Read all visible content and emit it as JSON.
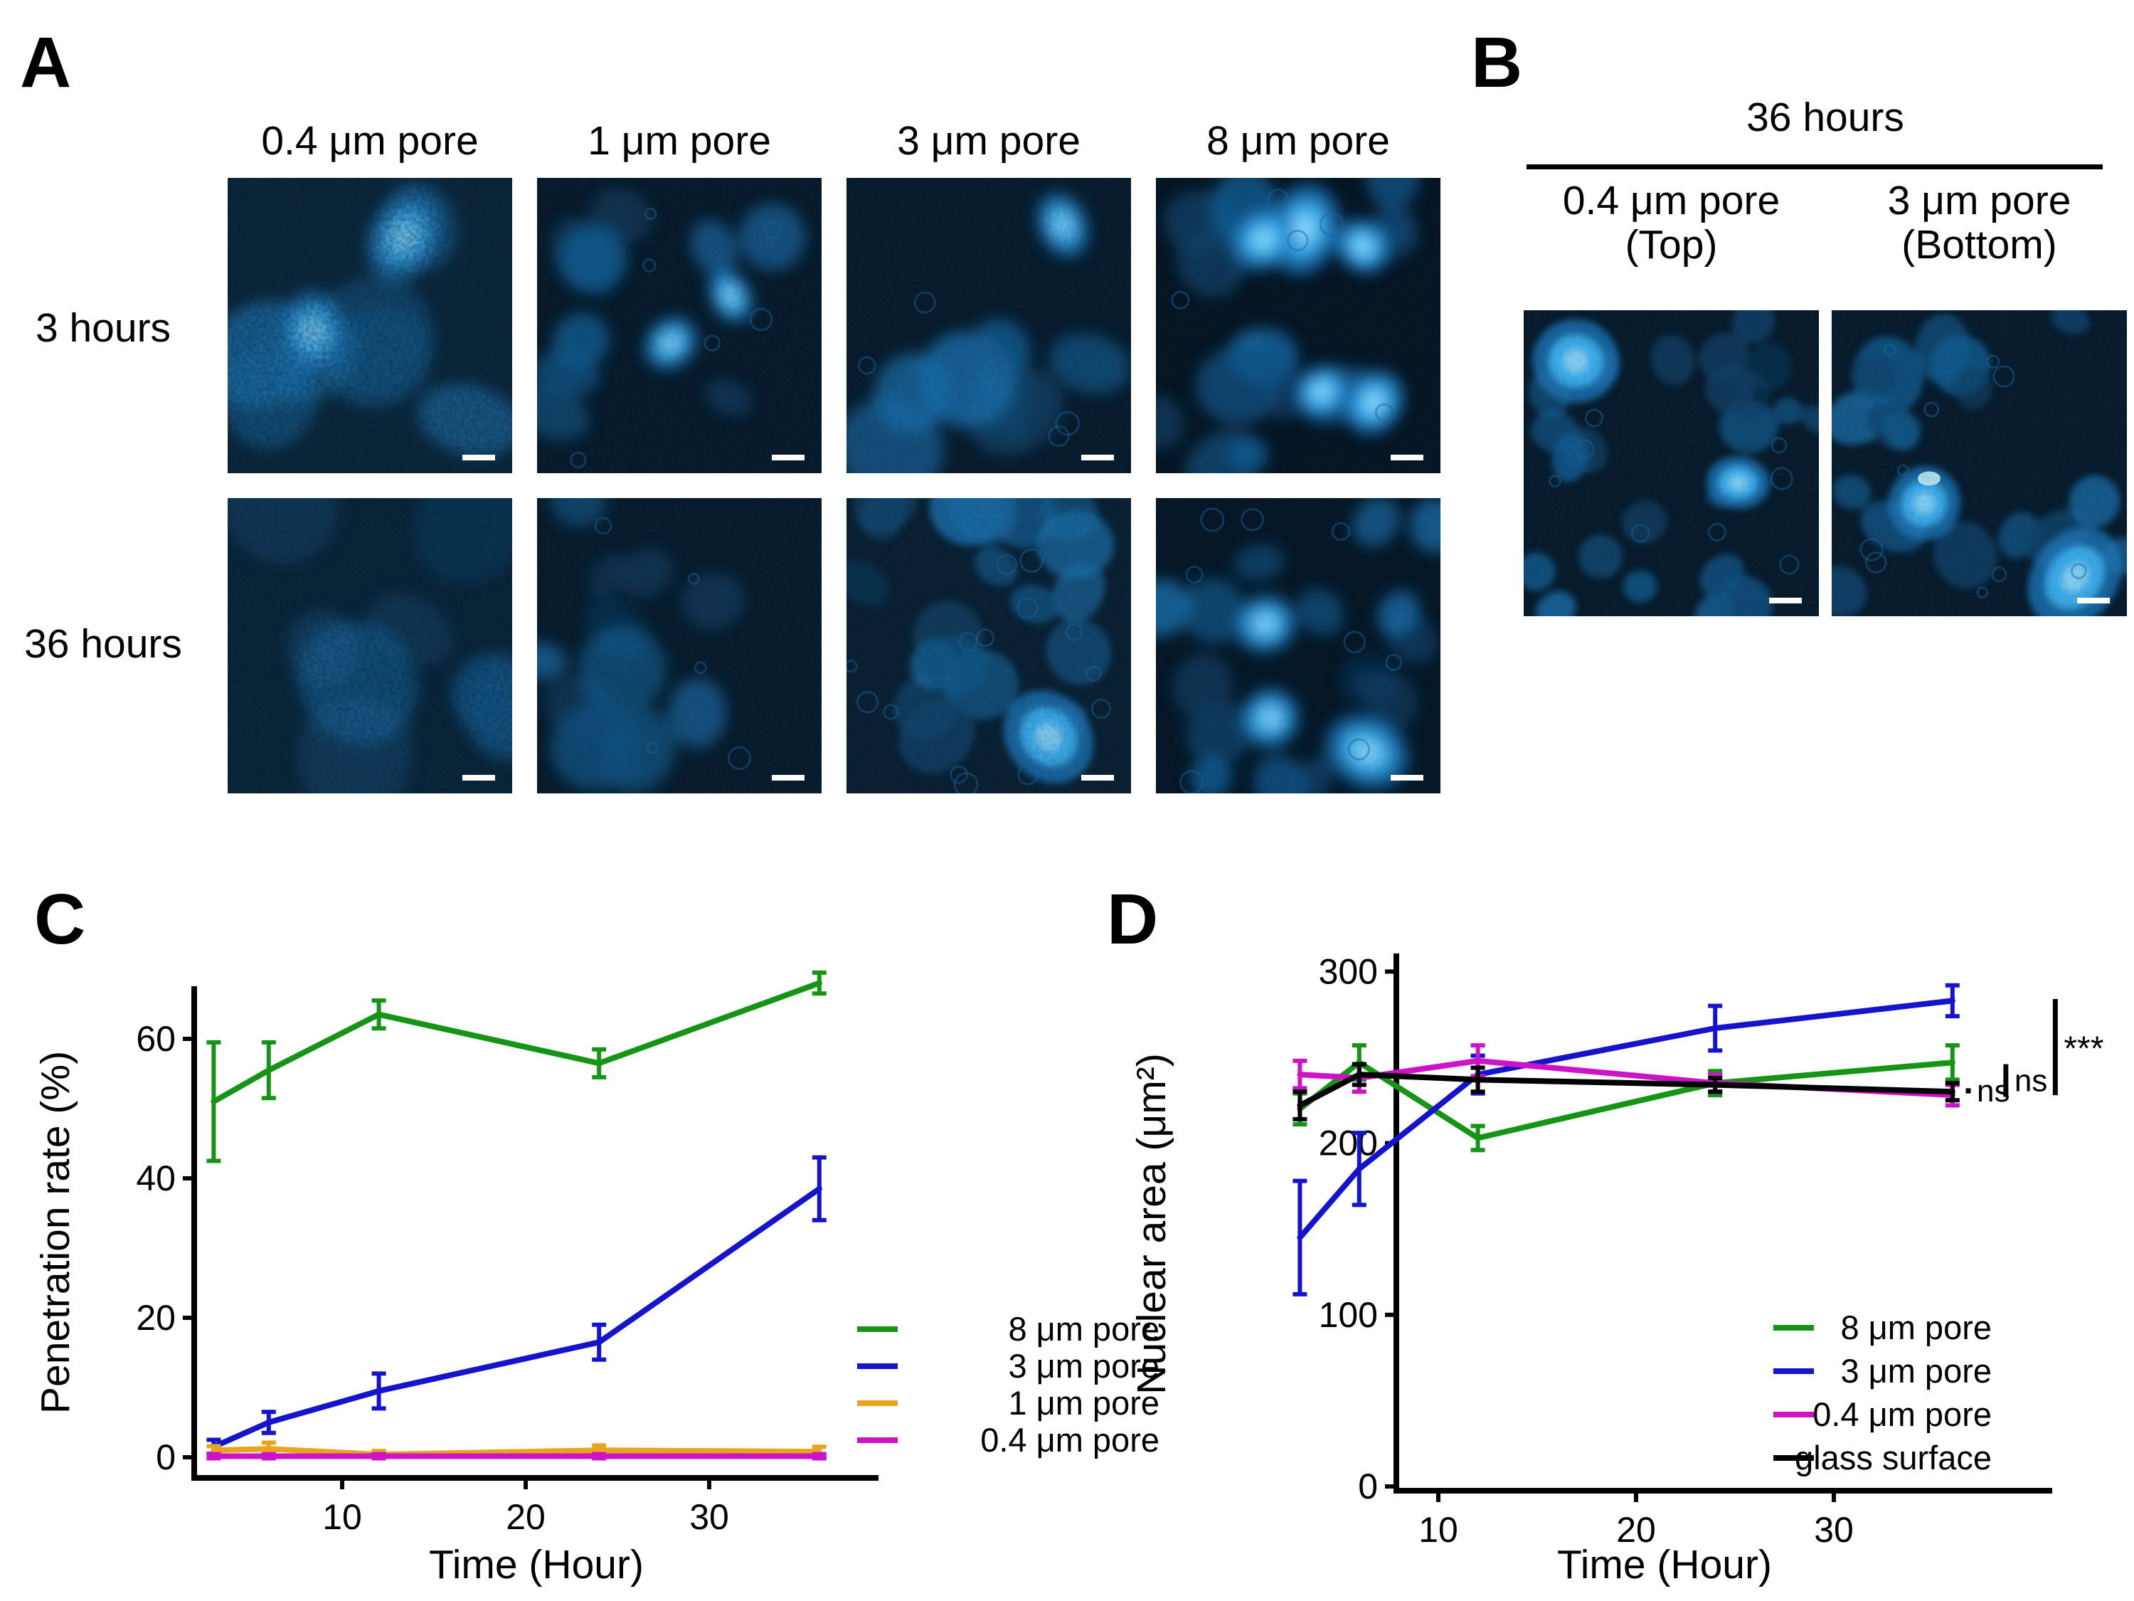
{
  "figure": {
    "panels": {
      "A": {
        "label": "A",
        "col_headers": [
          "0.4 μm pore",
          "1 μm pore",
          "3 μm pore",
          "8 μm pore"
        ],
        "row_labels": [
          "3 hours",
          "36 hours"
        ]
      },
      "B": {
        "label": "B",
        "title": "36 hours",
        "columns": [
          {
            "line1": "0.4 μm pore",
            "line2": "(Top)"
          },
          {
            "line1": "3 μm pore",
            "line2": "(Bottom)"
          }
        ]
      },
      "C": {
        "label": "C"
      },
      "D": {
        "label": "D"
      }
    }
  },
  "chart_data": [
    {
      "id": "penetration-rate",
      "type": "line",
      "title": "",
      "xlabel": "Time (Hour)",
      "ylabel": "Penetration rate (%)",
      "x": [
        3,
        6,
        12,
        24,
        36
      ],
      "xticks": [
        10,
        20,
        30
      ],
      "yticks": [
        0,
        20,
        40,
        60
      ],
      "xlim": [
        2,
        39
      ],
      "ylim": [
        -3,
        72
      ],
      "grid": false,
      "legend_position": "right",
      "series": [
        {
          "name": "8 μm pore",
          "color": "#169416",
          "values": [
            51,
            55.5,
            63.5,
            56.5,
            68
          ],
          "errors": [
            8.5,
            4,
            2,
            2,
            1.5
          ]
        },
        {
          "name": "3 μm pore",
          "color": "#1414cc",
          "values": [
            1.5,
            5,
            9.5,
            16.5,
            38.5
          ],
          "errors": [
            1,
            1.5,
            2.5,
            2.5,
            4.5
          ]
        },
        {
          "name": "1 μm pore",
          "color": "#e8a41d",
          "values": [
            1,
            1.2,
            0.4,
            1,
            0.8
          ],
          "errors": [
            0.6,
            0.9,
            0.5,
            0.7,
            0.7
          ]
        },
        {
          "name": "0.4 μm pore",
          "color": "#cc13c8",
          "values": [
            0.15,
            0.15,
            0.15,
            0.15,
            0.15
          ],
          "errors": [
            0.3,
            0.3,
            0.3,
            0.3,
            0.3
          ]
        }
      ],
      "annotations": []
    },
    {
      "id": "nuclear-area",
      "type": "line",
      "title": "",
      "xlabel": "Time (Hour)",
      "ylabel": "Nuclear area (μm²)",
      "x": [
        3,
        6,
        12,
        24,
        36
      ],
      "xticks": [
        10,
        20,
        30
      ],
      "yticks": [
        0,
        100,
        200,
        300
      ],
      "xlim": [
        2,
        47
      ],
      "ylim": [
        0,
        310
      ],
      "grid": false,
      "legend_position": "right",
      "series": [
        {
          "name": "8 μm pore",
          "color": "#169416",
          "values": [
            220,
            247,
            203,
            235,
            247
          ],
          "errors": [
            9,
            10,
            7,
            7,
            10
          ]
        },
        {
          "name": "3 μm pore",
          "color": "#1414cc",
          "values": [
            145,
            185,
            240,
            267,
            283
          ],
          "errors": [
            33,
            21,
            11,
            13,
            9
          ]
        },
        {
          "name": "0.4 μm pore",
          "color": "#cc13c8",
          "values": [
            240,
            238,
            248,
            235,
            228
          ],
          "errors": [
            8,
            8,
            9,
            5,
            6
          ]
        },
        {
          "name": "glass surface",
          "color": "#000000",
          "values": [
            222,
            240,
            237,
            234,
            230
          ],
          "errors": [
            8,
            6,
            7,
            4,
            5
          ]
        }
      ],
      "annotations": [
        {
          "label": "ns",
          "x": 36.8,
          "v_lo": 229,
          "v_hi": 232
        },
        {
          "label": "ns",
          "x": 38.7,
          "v_lo": 227,
          "v_hi": 246
        },
        {
          "label": "***",
          "x": 41.2,
          "v_lo": 228,
          "v_hi": 284
        }
      ]
    }
  ]
}
